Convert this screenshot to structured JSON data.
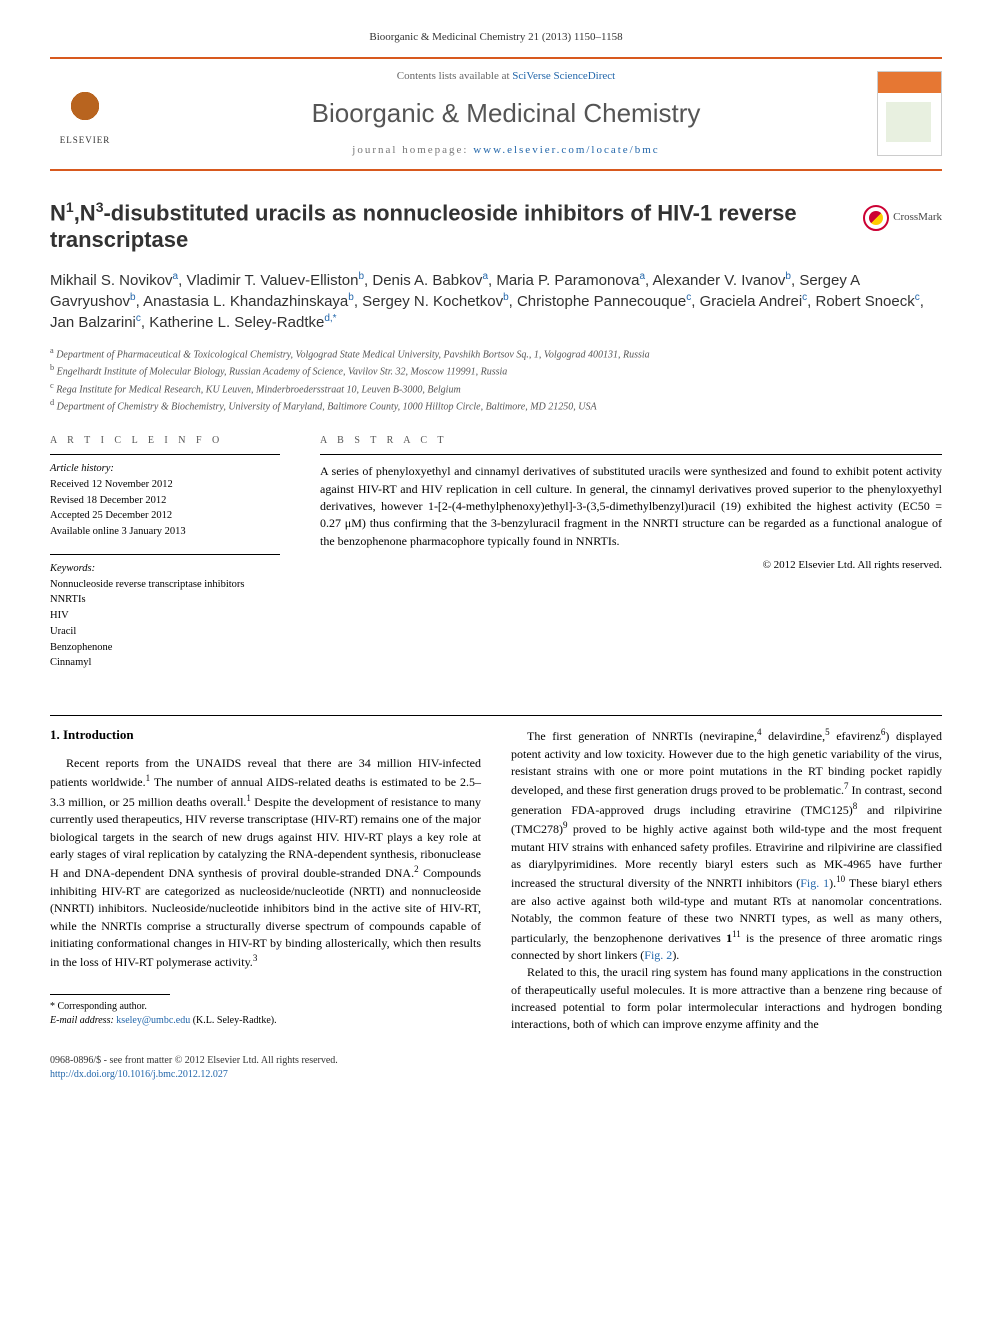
{
  "journal_ref": "Bioorganic & Medicinal Chemistry 21 (2013) 1150–1158",
  "header": {
    "contents_prefix": "Contents lists available at ",
    "contents_link": "SciVerse ScienceDirect",
    "journal_name": "Bioorganic & Medicinal Chemistry",
    "homepage_prefix": "journal homepage: ",
    "homepage_url": "www.elsevier.com/locate/bmc",
    "publisher": "ELSEVIER"
  },
  "crossmark_label": "CrossMark",
  "title_html": "N<sup>1</sup>,N<sup>3</sup>-disubstituted uracils as nonnucleoside inhibitors of HIV-1 reverse transcriptase",
  "authors_html": "Mikhail S. Novikov<sup>a</sup>, Vladimir T. Valuev-Elliston<sup>b</sup>, Denis A. Babkov<sup>a</sup>, Maria P. Paramonova<sup>a</sup>, Alexander V. Ivanov<sup>b</sup>, Sergey A Gavryushov<sup>b</sup>, Anastasia L. Khandazhinskaya<sup>b</sup>, Sergey N. Kochetkov<sup>b</sup>, Christophe Pannecouque<sup>c</sup>, Graciela Andrei<sup>c</sup>, Robert Snoeck<sup>c</sup>, Jan Balzarini<sup>c</sup>, Katherine L. Seley-Radtke<sup>d,*</sup>",
  "affiliations": [
    "a Department of Pharmaceutical & Toxicological Chemistry, Volgograd State Medical University, Pavshikh Bortsov Sq., 1, Volgograd 400131, Russia",
    "b Engelhardt Institute of Molecular Biology, Russian Academy of Science, Vavilov Str. 32, Moscow 119991, Russia",
    "c Rega Institute for Medical Research, KU Leuven, Minderbroedersstraat 10, Leuven B-3000, Belgium",
    "d Department of Chemistry & Biochemistry, University of Maryland, Baltimore County, 1000 Hilltop Circle, Baltimore, MD 21250, USA"
  ],
  "article_info": {
    "heading": "A R T I C L E   I N F O",
    "history_label": "Article history:",
    "received": "Received 12 November 2012",
    "revised": "Revised 18 December 2012",
    "accepted": "Accepted 25 December 2012",
    "online": "Available online 3 January 2013",
    "keywords_label": "Keywords:",
    "keywords": [
      "Nonnucleoside reverse transcriptase inhibitors",
      "NNRTIs",
      "HIV",
      "Uracil",
      "Benzophenone",
      "Cinnamyl"
    ]
  },
  "abstract": {
    "heading": "A B S T R A C T",
    "text": "A series of phenyloxyethyl and cinnamyl derivatives of substituted uracils were synthesized and found to exhibit potent activity against HIV-RT and HIV replication in cell culture. In general, the cinnamyl derivatives proved superior to the phenyloxyethyl derivatives, however 1-[2-(4-methylphenoxy)ethyl]-3-(3,5-dimethylbenzyl)uracil (19) exhibited the highest activity (EC50 = 0.27 μM) thus confirming that the 3-benzyluracil fragment in the NNRTI structure can be regarded as a functional analogue of the benzophenone pharmacophore typically found in NNRTIs.",
    "copyright": "© 2012 Elsevier Ltd. All rights reserved."
  },
  "section1_heading": "1. Introduction",
  "para1": "Recent reports from the UNAIDS reveal that there are 34 million HIV-infected patients worldwide.<sup>1</sup> The number of annual AIDS-related deaths is estimated to be 2.5–3.3 million, or 25 million deaths overall.<sup>1</sup> Despite the development of resistance to many currently used therapeutics, HIV reverse transcriptase (HIV-RT) remains one of the major biological targets in the search of new drugs against HIV. HIV-RT plays a key role at early stages of viral replication by catalyzing the RNA-dependent synthesis, ribonuclease H and DNA-dependent DNA synthesis of proviral double-stranded DNA.<sup>2</sup> Compounds inhibiting HIV-RT are categorized as nucleoside/nucleotide (NRTI) and nonnucleoside (NNRTI) inhibitors. Nucleoside/nucleotide inhibitors bind in the active site of HIV-RT, while the NNRTIs comprise a structurally diverse spectrum of compounds capable of initiating conformational changes in HIV-RT by binding allosterically, which then results in the loss of HIV-RT polymerase activity.<sup>3</sup>",
  "para2": "The first generation of NNRTIs (nevirapine,<sup>4</sup> delavirdine,<sup>5</sup> efavirenz<sup>6</sup>) displayed potent activity and low toxicity. However due to the high genetic variability of the virus, resistant strains with one or more point mutations in the RT binding pocket rapidly developed, and these first generation drugs proved to be problematic.<sup>7</sup> In contrast, second generation FDA-approved drugs including etravirine (TMC125)<sup>8</sup> and rilpivirine (TMC278)<sup>9</sup> proved to be highly active against both wild-type and the most frequent mutant HIV strains with enhanced safety profiles. Etravirine and rilpivirine are classified as diarylpyrimidines. More recently biaryl esters such as MK-4965 have further increased the structural diversity of the NNRTI inhibitors (<a href=\"#\">Fig. 1</a>).<sup>10</sup> These biaryl ethers are also active against both wild-type and mutant RTs at nanomolar concentrations. Notably, the common feature of these two NNRTI types, as well as many others, particularly, the benzophenone derivatives <b>1</b><sup>11</sup> is the presence of three aromatic rings connected by short linkers (<a href=\"#\">Fig. 2</a>).",
  "para3": "Related to this, the uracil ring system has found many applications in the construction of therapeutically useful molecules. It is more attractive than a benzene ring because of increased potential to form polar intermolecular interactions and hydrogen bonding interactions, both of which can improve enzyme affinity and the",
  "corr_label": "* Corresponding author.",
  "email_label": "E-mail address:",
  "email": "kseley@umbc.edu",
  "email_name": "(K.L. Seley-Radtke).",
  "footer": {
    "issn_line": "0968-0896/$ - see front matter © 2012 Elsevier Ltd. All rights reserved.",
    "doi": "http://dx.doi.org/10.1016/j.bmc.2012.12.027"
  },
  "colors": {
    "accent": "#d8591e",
    "link": "#2266aa",
    "text": "#000000",
    "muted": "#555555"
  }
}
